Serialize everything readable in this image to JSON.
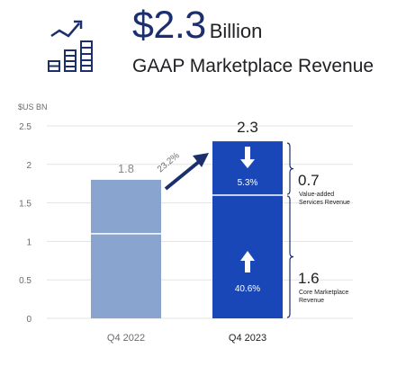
{
  "header": {
    "value": "$2.3",
    "unit": "Billion",
    "subtitle": "GAAP Marketplace Revenue",
    "icon": "growth-chart-icon"
  },
  "colors": {
    "navy": "#1b2f6e",
    "bar_2022": "#8aa4d0",
    "bar_2023_main": "#1a47b8",
    "bar_2023_top": "#2b67d6",
    "grid": "#e3e3e3",
    "axis_text": "#6b6b6b",
    "bracket": "#1b2f6e"
  },
  "chart_data": {
    "type": "bar",
    "ylabel": "$US BN",
    "ylim": [
      0,
      2.5
    ],
    "yticks": [
      "2.5",
      "2",
      "1.5",
      "1",
      "0.5",
      "0"
    ],
    "ytick_values": [
      2.5,
      2,
      1.5,
      1,
      0.5,
      0
    ],
    "categories": [
      "Q4 2022",
      "Q4 2023"
    ],
    "total_values": [
      1.8,
      2.3
    ],
    "total_labels": [
      "1.8",
      "2.3"
    ],
    "series": [
      {
        "name": "Core Marketplace Revenue",
        "values": [
          1.1,
          1.6
        ]
      },
      {
        "name": "Value-added Services Revenue",
        "values": [
          0.7,
          0.7
        ]
      }
    ],
    "growth_label": "23.2%",
    "segments": [
      {
        "value_label": "0.7",
        "growth": "5.3%",
        "name_lines": [
          "Value-added",
          "Services Revenue"
        ]
      },
      {
        "value_label": "1.6",
        "growth": "40.6%",
        "name_lines": [
          "Core Marketplace",
          "Revenue"
        ]
      }
    ]
  }
}
